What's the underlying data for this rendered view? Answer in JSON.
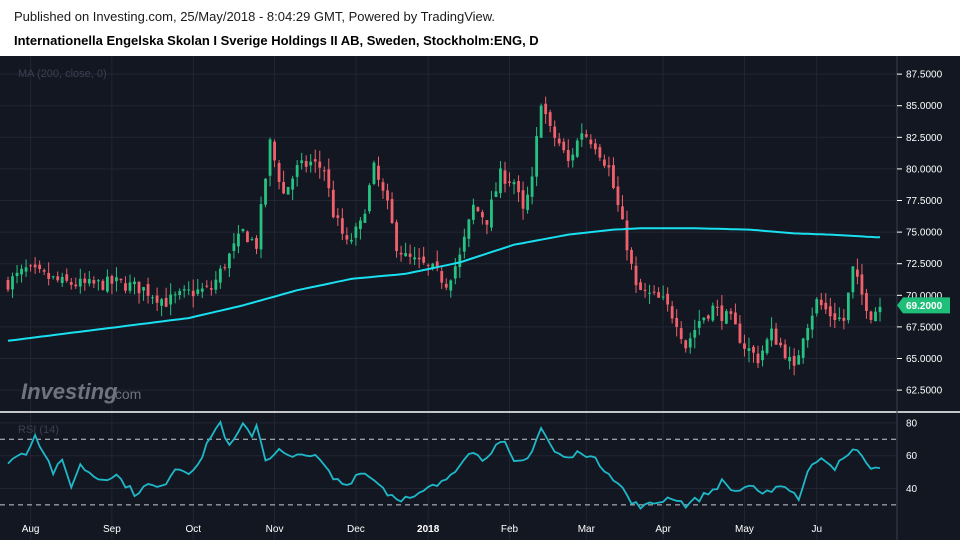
{
  "header": {
    "published": "Published on Investing.com, 25/May/2018 - 8:04:29 GMT, Powered by TradingView.",
    "title": "Internationella Engelska Skolan I Sverige Holdings II AB, Sweden, Stockholm:ENG, D"
  },
  "watermark": {
    "brand": "Investing",
    "suffix": ".com"
  },
  "colors": {
    "background": "#131722",
    "up": "#26c281",
    "down": "#f0616c",
    "ma": "#18e0f0",
    "rsi": "#1fb8c8",
    "grid": "#222632",
    "price_tag": "#1fbf7a"
  },
  "chart_data": {
    "type": "candlestick",
    "symbol": "Stockholm:ENG",
    "interval": "D",
    "price_axis": {
      "ticks": [
        "87.5000",
        "85.0000",
        "82.5000",
        "80.0000",
        "77.5000",
        "75.0000",
        "72.5000",
        "70.0000",
        "67.5000",
        "65.0000",
        "62.5000"
      ],
      "range": [
        61.4,
        88.3
      ]
    },
    "current_price": "69.2000",
    "ma": {
      "label": "MA (200, close, 0)",
      "period": 200
    },
    "rsi": {
      "label": "RSI (14)",
      "ticks": [
        "80",
        "60",
        "40"
      ],
      "levels": [
        70,
        30
      ],
      "range": [
        22,
        83
      ]
    },
    "x_labels": [
      "Aug",
      "Sep",
      "Oct",
      "Nov",
      "Dec",
      "2018",
      "Feb",
      "Mar",
      "Apr",
      "May",
      "Ju"
    ],
    "anchors": [
      [
        0,
        71
      ],
      [
        4,
        72
      ],
      [
        8,
        71.5
      ],
      [
        12,
        71
      ],
      [
        18,
        70.8
      ],
      [
        24,
        71
      ],
      [
        30,
        70.5
      ],
      [
        35,
        69.5
      ],
      [
        40,
        70.2
      ],
      [
        45,
        70.5
      ],
      [
        48,
        72.5
      ],
      [
        52,
        75
      ],
      [
        55,
        74
      ],
      [
        58,
        82
      ],
      [
        61,
        78
      ],
      [
        64,
        80
      ],
      [
        67,
        80.5
      ],
      [
        70,
        80
      ],
      [
        72,
        76.5
      ],
      [
        75,
        74
      ],
      [
        78,
        75.5
      ],
      [
        81,
        80
      ],
      [
        84,
        77
      ],
      [
        86,
        74
      ],
      [
        88,
        73
      ],
      [
        91,
        72.5
      ],
      [
        94,
        72
      ],
      [
        97,
        71
      ],
      [
        100,
        73
      ],
      [
        103,
        77
      ],
      [
        106,
        76
      ],
      [
        109,
        79.5
      ],
      [
        112,
        79
      ],
      [
        114,
        76.5
      ],
      [
        116,
        79
      ],
      [
        118,
        85.5
      ],
      [
        120,
        83
      ],
      [
        122,
        82
      ],
      [
        124,
        80.5
      ],
      [
        127,
        83
      ],
      [
        130,
        82
      ],
      [
        133,
        80
      ],
      [
        135,
        77
      ],
      [
        137,
        74
      ],
      [
        139,
        70.5
      ],
      [
        142,
        70
      ],
      [
        145,
        69.5
      ],
      [
        148,
        68
      ],
      [
        150,
        66
      ],
      [
        153,
        68
      ],
      [
        156,
        69
      ],
      [
        160,
        68
      ],
      [
        163,
        66
      ],
      [
        166,
        65
      ],
      [
        169,
        67
      ],
      [
        172,
        65.5
      ],
      [
        174,
        64
      ],
      [
        176,
        67
      ],
      [
        179,
        69.5
      ],
      [
        182,
        68.5
      ],
      [
        185,
        68
      ],
      [
        187,
        72
      ],
      [
        189,
        70
      ],
      [
        191,
        68.5
      ],
      [
        193,
        69.2
      ]
    ],
    "rsi_anchors": [
      [
        0,
        57
      ],
      [
        4,
        62
      ],
      [
        6,
        73
      ],
      [
        8,
        62
      ],
      [
        10,
        50
      ],
      [
        12,
        56
      ],
      [
        14,
        42
      ],
      [
        16,
        54
      ],
      [
        20,
        46
      ],
      [
        24,
        48
      ],
      [
        28,
        37
      ],
      [
        31,
        42
      ],
      [
        34,
        40
      ],
      [
        37,
        53
      ],
      [
        40,
        50
      ],
      [
        43,
        59
      ],
      [
        45,
        73
      ],
      [
        47,
        80
      ],
      [
        49,
        65
      ],
      [
        52,
        78
      ],
      [
        54,
        73
      ],
      [
        55,
        79
      ],
      [
        57,
        58
      ],
      [
        60,
        63
      ],
      [
        63,
        58
      ],
      [
        66,
        62
      ],
      [
        69,
        57
      ],
      [
        72,
        46
      ],
      [
        75,
        42
      ],
      [
        78,
        51
      ],
      [
        80,
        47
      ],
      [
        82,
        44
      ],
      [
        84,
        37
      ],
      [
        87,
        34
      ],
      [
        90,
        34
      ],
      [
        93,
        40
      ],
      [
        96,
        43
      ],
      [
        99,
        52
      ],
      [
        102,
        63
      ],
      [
        105,
        58
      ],
      [
        108,
        66
      ],
      [
        110,
        67
      ],
      [
        112,
        55
      ],
      [
        115,
        58
      ],
      [
        118,
        77
      ],
      [
        121,
        62
      ],
      [
        124,
        58
      ],
      [
        127,
        63
      ],
      [
        130,
        57
      ],
      [
        133,
        50
      ],
      [
        136,
        40
      ],
      [
        138,
        31
      ],
      [
        141,
        29
      ],
      [
        144,
        32
      ],
      [
        147,
        35
      ],
      [
        150,
        30
      ],
      [
        153,
        34
      ],
      [
        156,
        39
      ],
      [
        158,
        44
      ],
      [
        161,
        38
      ],
      [
        164,
        42
      ],
      [
        167,
        35
      ],
      [
        170,
        42
      ],
      [
        173,
        40
      ],
      [
        175,
        34
      ],
      [
        177,
        50
      ],
      [
        180,
        60
      ],
      [
        183,
        53
      ],
      [
        186,
        60
      ],
      [
        188,
        65
      ],
      [
        190,
        54
      ],
      [
        192,
        53
      ]
    ],
    "ma_anchors": [
      [
        0,
        66.4
      ],
      [
        20,
        67.3
      ],
      [
        40,
        68.2
      ],
      [
        52,
        69.2
      ],
      [
        64,
        70.4
      ],
      [
        76,
        71.3
      ],
      [
        88,
        71.7
      ],
      [
        100,
        72.6
      ],
      [
        112,
        74.0
      ],
      [
        124,
        74.8
      ],
      [
        134,
        75.2
      ],
      [
        140,
        75.3
      ],
      [
        152,
        75.3
      ],
      [
        164,
        75.2
      ],
      [
        174,
        74.9
      ],
      [
        182,
        74.8
      ],
      [
        192,
        74.6
      ]
    ]
  }
}
